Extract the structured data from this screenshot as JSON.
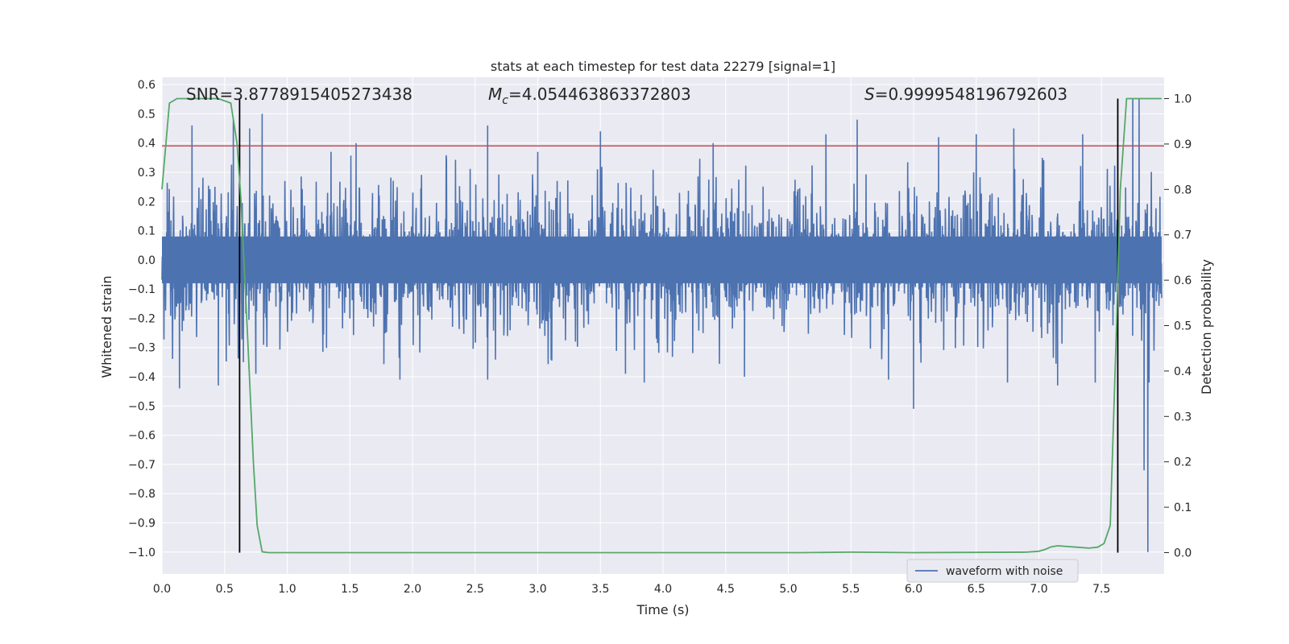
{
  "chart_data": {
    "type": "line",
    "title": "stats at each timestep for test data 22279 [signal=1]",
    "xlabel": "Time (s)",
    "ylabel": "Whitened strain",
    "ylabel_right": "Detection probability",
    "xlim": [
      0.0,
      8.0
    ],
    "ylim": [
      -1.075,
      0.625
    ],
    "ylim_right": [
      -0.047,
      1.047
    ],
    "x_ticks": [
      "0.0",
      "0.5",
      "1.0",
      "1.5",
      "2.0",
      "2.5",
      "3.0",
      "3.5",
      "4.0",
      "4.5",
      "5.0",
      "5.5",
      "6.0",
      "6.5",
      "7.0",
      "7.5"
    ],
    "y_ticks": [
      "0.6",
      "0.5",
      "0.4",
      "0.3",
      "0.2",
      "0.1",
      "0.0",
      "−0.1",
      "−0.2",
      "−0.3",
      "−0.4",
      "−0.5",
      "−0.6",
      "−0.7",
      "−0.8",
      "−0.9",
      "−1.0"
    ],
    "y_ticks_right": [
      "1.0",
      "0.9",
      "0.8",
      "0.7",
      "0.6",
      "0.5",
      "0.4",
      "0.3",
      "0.2",
      "0.1",
      "0.0"
    ],
    "annotations": {
      "snr": "SNR=3.8778915405273438",
      "mc_symbol": "M",
      "mc_sub": "c",
      "mc_value": "=4.054463863372803",
      "s_symbol": "S",
      "s_value": "=0.9999548196792603"
    },
    "threshold_strain": 0.39,
    "vertical_lines_time": [
      0.62,
      7.63
    ],
    "series": [
      {
        "name": "waveform with noise",
        "color": "#4c72b0",
        "envelope_typical": 0.22,
        "envelope_peak": 0.45,
        "spikes": [
          [
            0.14,
            -0.44
          ],
          [
            0.24,
            0.46
          ],
          [
            0.45,
            -0.43
          ],
          [
            0.57,
            0.48
          ],
          [
            0.65,
            -0.35
          ],
          [
            0.7,
            0.45
          ],
          [
            0.75,
            -0.39
          ],
          [
            0.8,
            0.5
          ],
          [
            1.35,
            0.37
          ],
          [
            1.55,
            0.4
          ],
          [
            1.9,
            -0.41
          ],
          [
            2.6,
            0.46
          ],
          [
            2.6,
            -0.41
          ],
          [
            3.0,
            0.37
          ],
          [
            3.5,
            0.44
          ],
          [
            3.7,
            -0.39
          ],
          [
            3.85,
            -0.42
          ],
          [
            4.4,
            0.4
          ],
          [
            4.65,
            -0.4
          ],
          [
            5.3,
            0.43
          ],
          [
            5.55,
            0.48
          ],
          [
            5.8,
            -0.41
          ],
          [
            6.0,
            -0.51
          ],
          [
            6.2,
            0.42
          ],
          [
            6.5,
            0.43
          ],
          [
            6.75,
            -0.42
          ],
          [
            6.8,
            0.45
          ],
          [
            7.15,
            -0.43
          ],
          [
            7.35,
            0.43
          ],
          [
            7.45,
            -0.42
          ],
          [
            7.75,
            0.55
          ],
          [
            7.8,
            0.55
          ],
          [
            7.84,
            -0.72
          ],
          [
            7.88,
            -0.42
          ],
          [
            7.87,
            -1.0
          ]
        ]
      },
      {
        "name": "detection probability",
        "color": "#55a868",
        "axis": "right",
        "x": [
          0.0,
          0.06,
          0.12,
          0.3,
          0.45,
          0.55,
          0.6,
          0.63,
          0.68,
          0.73,
          0.76,
          0.8,
          0.85,
          0.9,
          2.0,
          3.0,
          4.0,
          5.0,
          5.1,
          5.5,
          6.0,
          6.9,
          7.0,
          7.05,
          7.1,
          7.15,
          7.3,
          7.4,
          7.47,
          7.52,
          7.57,
          7.62,
          7.65,
          7.7,
          7.76,
          7.8,
          7.9,
          7.98
        ],
        "values": [
          0.8,
          0.99,
          1.0,
          1.0,
          1.0,
          0.99,
          0.9,
          0.78,
          0.5,
          0.2,
          0.06,
          0.002,
          0.0,
          0.0,
          0.0,
          0.0,
          0.0,
          0.0,
          0.0,
          0.001,
          0.0,
          0.001,
          0.003,
          0.007,
          0.013,
          0.015,
          0.012,
          0.01,
          0.012,
          0.02,
          0.06,
          0.5,
          0.8,
          1.0,
          1.0,
          1.0,
          1.0,
          1.0
        ]
      }
    ],
    "legend": {
      "label": "waveform with noise",
      "placement": "lower-right"
    },
    "colors": {
      "panel_bg": "#eaeaf2",
      "grid": "#ffffff",
      "threshold": "#c44e52",
      "vline": "#000000"
    }
  }
}
